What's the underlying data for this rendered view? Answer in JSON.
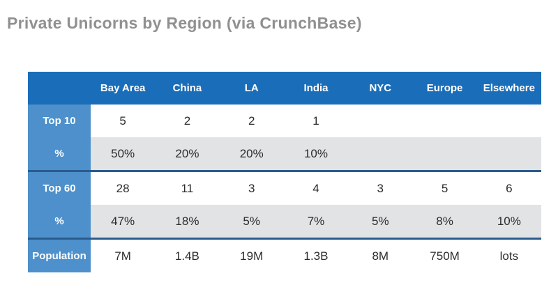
{
  "title": "Private Unicorns by Region (via CrunchBase)",
  "chart_data": {
    "type": "table",
    "title": "Private Unicorns by Region (via CrunchBase)",
    "columns": [
      "Bay Area",
      "China",
      "LA",
      "India",
      "NYC",
      "Europe",
      "Elsewhere"
    ],
    "rows": [
      {
        "label": "Top 10",
        "values": [
          "5",
          "2",
          "2",
          "1",
          "",
          "",
          ""
        ]
      },
      {
        "label": "%",
        "values": [
          "50%",
          "20%",
          "20%",
          "10%",
          "",
          "",
          ""
        ]
      },
      {
        "label": "Top 60",
        "values": [
          "28",
          "11",
          "3",
          "4",
          "3",
          "5",
          "6"
        ]
      },
      {
        "label": "%",
        "values": [
          "47%",
          "18%",
          "5%",
          "7%",
          "5%",
          "8%",
          "10%"
        ]
      },
      {
        "label": "Population",
        "values": [
          "7M",
          "1.4B",
          "19M",
          "1.3B",
          "8M",
          "750M",
          "lots"
        ]
      }
    ],
    "layout_hints": {
      "row_groups": [
        [
          "Top 10",
          "%"
        ],
        [
          "Top 60",
          "%"
        ],
        [
          "Population"
        ]
      ],
      "separators_after_row_indexes": [
        1,
        3
      ],
      "striped_row_indexes": [
        1,
        3
      ],
      "legend": "none",
      "grid": "off"
    }
  },
  "colors": {
    "header_bg": "#1a6db8",
    "row_label_bg": "#4d90cb",
    "stripe_bg": "#e2e3e5",
    "separator": "#2a5c8e",
    "title_text": "#909090",
    "header_text": "#ffffff",
    "cell_text": "#2b2b2b"
  }
}
